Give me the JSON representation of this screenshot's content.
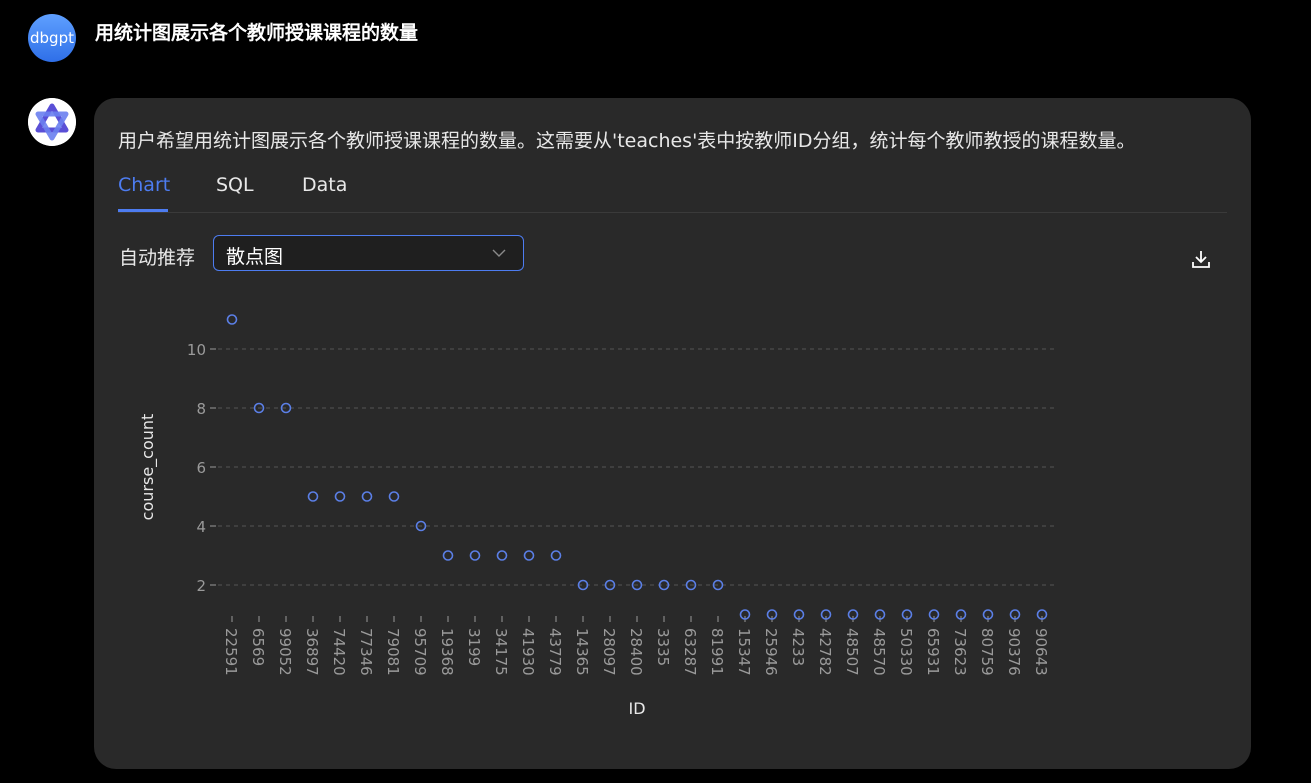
{
  "user": {
    "avatar_text": "dbgpt",
    "question": "用统计图展示各个教师授课课程的数量"
  },
  "assistant": {
    "summary": "用户希望用统计图展示各个教师授课课程的数量。这需要从'teaches'表中按教师ID分组，统计每个教师教授的课程数量。",
    "tabs": [
      "Chart",
      "SQL",
      "Data"
    ],
    "active_tab": "Chart",
    "recommend_label": "自动推荐",
    "chart_type_selected": "散点图"
  },
  "colors": {
    "accent": "#4d7cf0",
    "card_bg": "#292929",
    "point": "#5b7fe6"
  },
  "chart_data": {
    "type": "scatter",
    "xlabel": "ID",
    "ylabel": "course_count",
    "y_ticks": [
      2,
      4,
      6,
      8,
      10
    ],
    "ylim": [
      1,
      11
    ],
    "grid": true,
    "categories": [
      "22591",
      "6569",
      "99052",
      "36897",
      "74420",
      "77346",
      "79081",
      "95709",
      "19368",
      "3199",
      "34175",
      "41930",
      "43779",
      "14365",
      "28097",
      "28400",
      "3335",
      "63287",
      "81991",
      "15347",
      "25946",
      "4233",
      "42782",
      "48507",
      "48570",
      "50330",
      "65931",
      "73623",
      "80759",
      "90376",
      "90643"
    ],
    "values": [
      11,
      8,
      8,
      5,
      5,
      5,
      5,
      4,
      3,
      3,
      3,
      3,
      3,
      2,
      2,
      2,
      2,
      2,
      2,
      1,
      1,
      1,
      1,
      1,
      1,
      1,
      1,
      1,
      1,
      1,
      1
    ]
  }
}
